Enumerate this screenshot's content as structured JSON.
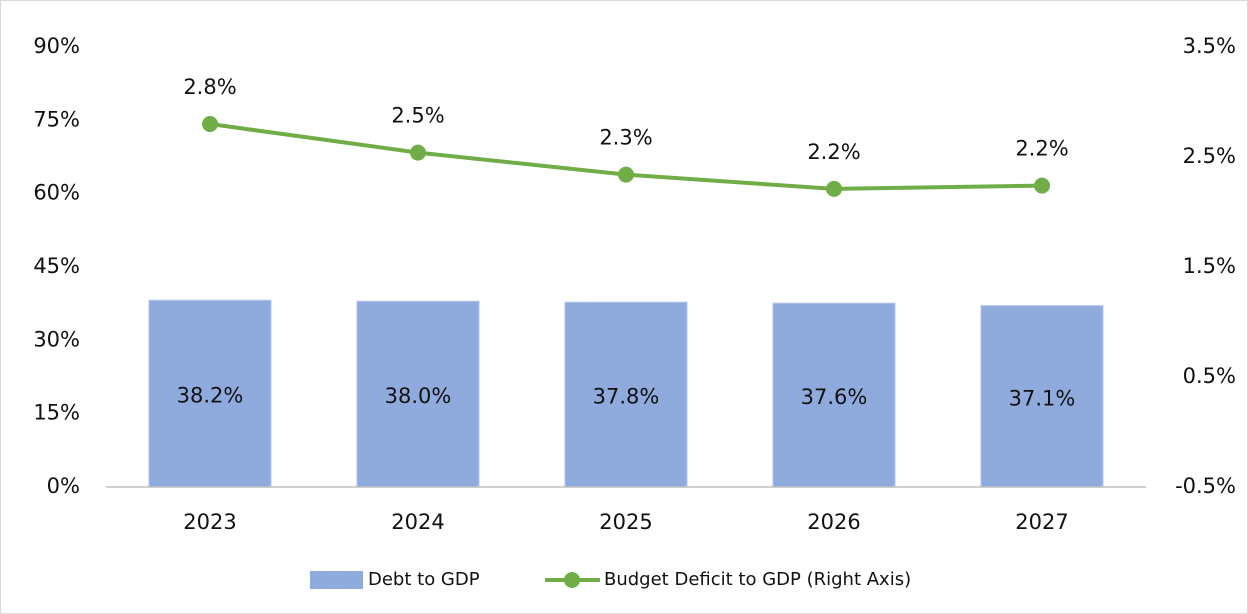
{
  "chart_data": {
    "type": "bar",
    "categories": [
      "2023",
      "2024",
      "2025",
      "2026",
      "2027"
    ],
    "series": [
      {
        "name": "Debt to GDP",
        "type": "bar",
        "color": "#8faadc",
        "values": [
          38.2,
          38.0,
          37.8,
          37.6,
          37.1
        ],
        "value_labels": [
          "38.2%",
          "38.0%",
          "37.8%",
          "37.6%",
          "37.1%"
        ]
      },
      {
        "name": "Budget Deficit to GDP (Right Axis)",
        "type": "line",
        "axis": "y2",
        "color": "#70ad47",
        "values": [
          2.8,
          2.54,
          2.34,
          2.21,
          2.24
        ],
        "value_labels": [
          "2.8%",
          "2.5%",
          "2.3%",
          "2.2%",
          "2.2%"
        ]
      }
    ],
    "ylim": [
      0,
      90
    ],
    "yticks": [
      {
        "value": 0,
        "label": "0%"
      },
      {
        "value": 15,
        "label": "15%"
      },
      {
        "value": 30,
        "label": "30%"
      },
      {
        "value": 45,
        "label": "45%"
      },
      {
        "value": 60,
        "label": "60%"
      },
      {
        "value": 75,
        "label": "75%"
      },
      {
        "value": 90,
        "label": "90%"
      }
    ],
    "y2lim": [
      -0.5,
      3.5
    ],
    "y2ticks": [
      {
        "value": -0.5,
        "label": "-0.5%"
      },
      {
        "value": 0.5,
        "label": "0.5%"
      },
      {
        "value": 1.5,
        "label": "1.5%"
      },
      {
        "value": 2.5,
        "label": "2.5%"
      },
      {
        "value": 3.5,
        "label": "3.5%"
      }
    ],
    "grid": false,
    "legend": "bottom"
  }
}
